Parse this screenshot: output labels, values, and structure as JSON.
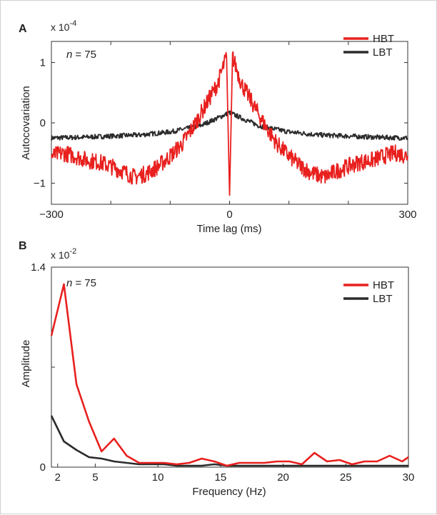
{
  "chart_data": [
    {
      "panel_label": "A",
      "type": "line",
      "title": "",
      "xlabel": "Time lag (ms)",
      "ylabel": "Autocovariation",
      "scale_label": "x 10",
      "scale_exponent": "-4",
      "annotation_n": "n",
      "annotation_value": "= 75",
      "xlim": [
        -300,
        300
      ],
      "ylim": [
        -1.35,
        1.35
      ],
      "x_ticks": [
        -300,
        0,
        300
      ],
      "x_minor_ticks": [
        -200,
        -100,
        100,
        200
      ],
      "y_ticks": [
        -1,
        0,
        1
      ],
      "grid": false,
      "legend_position": "top-right",
      "series": [
        {
          "name": "HBT",
          "color": "#e8201e",
          "x": [
            -300,
            -280,
            -260,
            -240,
            -220,
            -200,
            -180,
            -160,
            -140,
            -120,
            -100,
            -80,
            -60,
            -40,
            -20,
            -10,
            -5,
            0,
            5,
            10,
            20,
            40,
            60,
            80,
            100,
            120,
            140,
            160,
            180,
            200,
            220,
            240,
            260,
            280,
            300
          ],
          "y": [
            -0.55,
            -0.5,
            -0.55,
            -0.62,
            -0.65,
            -0.72,
            -0.8,
            -0.9,
            -0.84,
            -0.72,
            -0.55,
            -0.35,
            -0.05,
            0.3,
            0.65,
            0.95,
            1.1,
            -1.2,
            1.1,
            0.95,
            0.65,
            0.3,
            -0.05,
            -0.35,
            -0.55,
            -0.72,
            -0.84,
            -0.9,
            -0.8,
            -0.72,
            -0.65,
            -0.62,
            -0.55,
            -0.5,
            -0.55
          ]
        },
        {
          "name": "LBT",
          "color": "#2b2b2b",
          "x": [
            -300,
            -250,
            -200,
            -150,
            -100,
            -50,
            -20,
            0,
            20,
            50,
            100,
            150,
            200,
            250,
            300
          ],
          "y": [
            -0.25,
            -0.24,
            -0.22,
            -0.2,
            -0.15,
            -0.05,
            0.08,
            0.17,
            0.08,
            -0.05,
            -0.15,
            -0.2,
            -0.22,
            -0.24,
            -0.25
          ]
        }
      ]
    },
    {
      "panel_label": "B",
      "type": "line",
      "title": "",
      "xlabel": "Frequency (Hz)",
      "ylabel": "Amplitude",
      "scale_label": "x 10",
      "scale_exponent": "-2",
      "annotation_n": "n",
      "annotation_value": "= 75",
      "xlim": [
        1.5,
        30
      ],
      "ylim": [
        0,
        1.4
      ],
      "x_ticks": [
        2,
        5,
        10,
        15,
        20,
        25,
        30
      ],
      "y_ticks": [
        0,
        1.4
      ],
      "y_tick_labels": [
        "0",
        "1.4"
      ],
      "y_minor_ticks": [
        0.7
      ],
      "grid": false,
      "legend_position": "top-right",
      "series": [
        {
          "name": "HBT",
          "color": "#e8201e",
          "x": [
            1.5,
            2.5,
            3.5,
            4.5,
            5.5,
            6.5,
            7.5,
            8.5,
            9.5,
            10.5,
            11.5,
            12.5,
            13.5,
            14.5,
            15.5,
            16.5,
            17.5,
            18.5,
            19.5,
            20.5,
            21.5,
            22.5,
            23.5,
            24.5,
            25.5,
            26.5,
            27.5,
            28.5,
            29.5,
            30
          ],
          "y": [
            0.92,
            1.28,
            0.58,
            0.32,
            0.11,
            0.2,
            0.08,
            0.03,
            0.03,
            0.03,
            0.02,
            0.03,
            0.06,
            0.04,
            0.01,
            0.03,
            0.03,
            0.03,
            0.04,
            0.04,
            0.02,
            0.1,
            0.04,
            0.05,
            0.02,
            0.04,
            0.04,
            0.08,
            0.04,
            0.07
          ]
        },
        {
          "name": "LBT",
          "color": "#2b2b2b",
          "x": [
            1.5,
            2.5,
            3.5,
            4.5,
            5.5,
            6.5,
            7.5,
            8.5,
            9.5,
            10.5,
            11.5,
            12.5,
            13.5,
            14.5,
            15.5,
            16.5,
            17.5,
            18.5,
            19.5,
            20.5,
            21.5,
            22.5,
            23.5,
            24.5,
            25.5,
            26.5,
            27.5,
            28.5,
            29.5,
            30
          ],
          "y": [
            0.36,
            0.18,
            0.12,
            0.07,
            0.06,
            0.04,
            0.03,
            0.02,
            0.02,
            0.02,
            0.01,
            0.01,
            0.01,
            0.02,
            0.01,
            0.01,
            0.01,
            0.01,
            0.01,
            0.01,
            0.01,
            0.01,
            0.01,
            0.01,
            0.01,
            0.01,
            0.01,
            0.01,
            0.01,
            0.01
          ]
        }
      ]
    }
  ]
}
